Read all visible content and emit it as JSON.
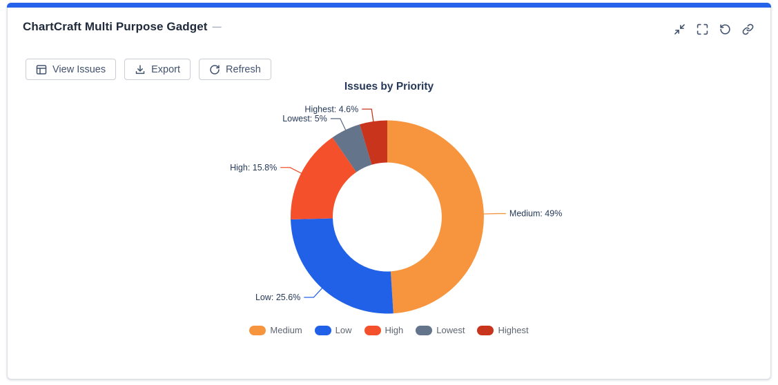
{
  "window": {
    "title": "ChartCraft Multi Purpose Gadget",
    "title_suffix": "—",
    "header_icons": [
      "collapse-icon",
      "fullscreen-icon",
      "reload-icon",
      "link-icon"
    ]
  },
  "toolbar": {
    "buttons": [
      {
        "label": "View Issues",
        "icon": "table-icon"
      },
      {
        "label": "Export",
        "icon": "download-icon"
      },
      {
        "label": "Refresh",
        "icon": "refresh-icon"
      }
    ]
  },
  "chart_data": {
    "type": "pie",
    "subtype": "donut",
    "title": "Issues by Priority",
    "legend_position": "bottom",
    "label_format": "name: value%",
    "slices": [
      {
        "name": "Medium",
        "value": 49,
        "color": "#F7943E",
        "callout": "Medium: 49%"
      },
      {
        "name": "Low",
        "value": 25.6,
        "color": "#2061E8",
        "callout": "Low: 25.6%"
      },
      {
        "name": "High",
        "value": 15.8,
        "color": "#F4502C",
        "callout": "High: 15.8%"
      },
      {
        "name": "Lowest",
        "value": 5,
        "color": "#64748B",
        "callout": "Lowest: 5%"
      },
      {
        "name": "Highest",
        "value": 4.6,
        "color": "#C9341C",
        "callout": "Highest: 4.6%"
      }
    ]
  },
  "accent_color": "#2563EB"
}
